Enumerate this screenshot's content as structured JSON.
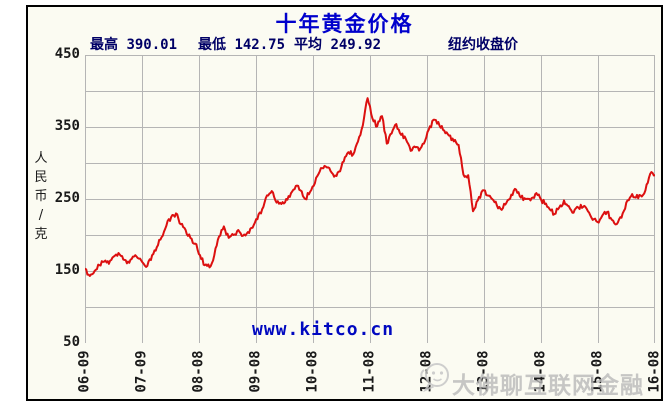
{
  "title": "十年黄金价格",
  "stats": {
    "high_label": "最高",
    "high_value": "390.01",
    "low_label": "最低",
    "low_value": "142.75",
    "avg_label": "平均",
    "avg_value": "249.92",
    "price_type": "纽约收盘价"
  },
  "y_axis": {
    "unit": "人民币/克",
    "tick_labels": [
      450,
      350,
      250,
      150,
      50
    ]
  },
  "watermarks": {
    "site": "www.kitco.cn",
    "overlay": "大佛聊互联网金融"
  },
  "colors": {
    "title_blue": "#0000cc",
    "stats_navy": "#000066",
    "line_red": "#dc1010",
    "kitco_blue": "#0008c0",
    "grid_gray": "#b5b5b5",
    "watermark_gray": "#b9b9b9",
    "plot_bg": "#fbfbf2"
  },
  "chart_data": {
    "type": "line",
    "title": "十年黄金价格",
    "ylabel": "人民币/克",
    "ylim": [
      50,
      450
    ],
    "y_gridline_step": 50,
    "y_labeled_ticks": [
      450,
      350,
      250,
      150,
      50
    ],
    "grid": true,
    "legend_position": "none",
    "x_tick_labels": [
      "06-09",
      "07-09",
      "08-08",
      "09-08",
      "10-08",
      "11-08",
      "12-08",
      "13-08",
      "14-08",
      "15-08",
      "16-08"
    ],
    "x_range": {
      "start": "2006-09",
      "end": "2016-08",
      "step": "month"
    },
    "stats": {
      "max": 390.01,
      "min": 142.75,
      "avg": 249.92
    },
    "series": [
      {
        "name": "纽约收盘价",
        "color": "#dc1010",
        "values": [
          153,
          143,
          150,
          158,
          163,
          160,
          170,
          175,
          166,
          163,
          170,
          168,
          162,
          157,
          172,
          183,
          197,
          213,
          225,
          230,
          215,
          207,
          196,
          188,
          172,
          158,
          155,
          172,
          198,
          212,
          196,
          200,
          207,
          199,
          204,
          210,
          222,
          236,
          255,
          261,
          245,
          243,
          250,
          258,
          268,
          262,
          250,
          260,
          272,
          288,
          296,
          293,
          281,
          288,
          302,
          315,
          312,
          330,
          352,
          390,
          362,
          351,
          365,
          327,
          341,
          354,
          339,
          333,
          317,
          322,
          320,
          331,
          351,
          360,
          352,
          345,
          338,
          330,
          325,
          284,
          283,
          233,
          248,
          262,
          255,
          250,
          241,
          235,
          245,
          256,
          263,
          252,
          250,
          248,
          257,
          252,
          243,
          236,
          229,
          238,
          248,
          240,
          231,
          238,
          239,
          233,
          221,
          218,
          227,
          232,
          221,
          215,
          224,
          245,
          254,
          252,
          255,
          262,
          285,
          283
        ]
      }
    ]
  }
}
